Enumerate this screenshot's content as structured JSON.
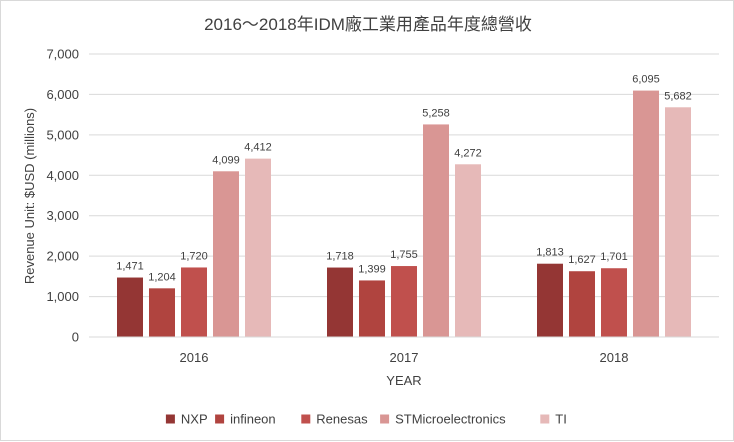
{
  "chart_data": {
    "type": "bar",
    "title": "2016～2018年IDM廠工業用產品年度總營收",
    "xlabel": "YEAR",
    "ylabel": "Revenue Unit: $USD (millions)",
    "ylim": [
      0,
      7000
    ],
    "yticks": [
      0,
      1000,
      2000,
      3000,
      4000,
      5000,
      6000,
      7000
    ],
    "ytick_labels": [
      "0",
      "1,000",
      "2,000",
      "3,000",
      "4,000",
      "5,000",
      "6,000",
      "7,000"
    ],
    "grid": true,
    "legend_position": "bottom",
    "categories": [
      "2016",
      "2017",
      "2018"
    ],
    "series": [
      {
        "name": "NXP",
        "color": "#943634",
        "values": [
          1471,
          1718,
          1813
        ],
        "labels": [
          "1,471",
          "1,718",
          "1,813"
        ]
      },
      {
        "name": "infineon",
        "color": "#b0443f",
        "values": [
          1204,
          1399,
          1627
        ],
        "labels": [
          "1,204",
          "1,399",
          "1,627"
        ]
      },
      {
        "name": "Renesas",
        "color": "#c0504d",
        "values": [
          1720,
          1755,
          1701
        ],
        "labels": [
          "1,720",
          "1,755",
          "1,701"
        ]
      },
      {
        "name": "STMicroelectronics",
        "color": "#d99694",
        "values": [
          4099,
          5258,
          6095
        ],
        "labels": [
          "4,099",
          "5,258",
          "6,095"
        ]
      },
      {
        "name": "TI",
        "color": "#e6b9b8",
        "values": [
          4412,
          4272,
          5682
        ],
        "labels": [
          "4,412",
          "4,272",
          "5,682"
        ]
      }
    ]
  }
}
